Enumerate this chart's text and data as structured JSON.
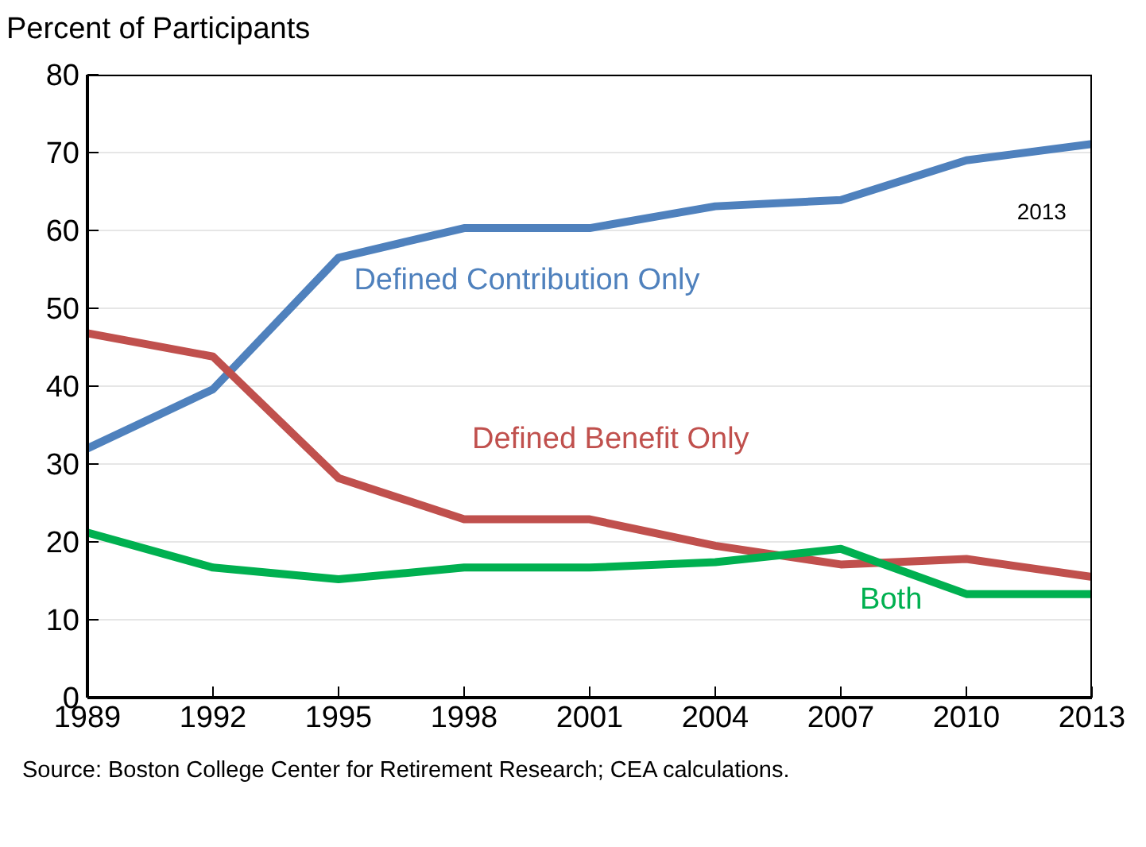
{
  "chart_data": {
    "type": "line",
    "ylabel": "Percent of Participants",
    "x": [
      1989,
      1992,
      1995,
      1998,
      2001,
      2004,
      2007,
      2010,
      2013
    ],
    "series": [
      {
        "name": "Defined Contribution Only",
        "color": "#4f81bd",
        "values": [
          32,
          39.6,
          56.5,
          60.3,
          60.3,
          63.1,
          63.9,
          69,
          71.1
        ]
      },
      {
        "name": "Defined Benefit Only",
        "color": "#c0504d",
        "values": [
          46.8,
          43.8,
          28.2,
          22.9,
          22.9,
          19.5,
          17.1,
          17.8,
          15.5
        ]
      },
      {
        "name": "Both",
        "color": "#00b050",
        "values": [
          21.2,
          16.7,
          15.2,
          16.7,
          16.7,
          17.4,
          19.1,
          13.3,
          13.3
        ]
      }
    ],
    "xlim": [
      1989,
      2013
    ],
    "xticks": [
      1989,
      1992,
      1995,
      1998,
      2001,
      2004,
      2007,
      2010,
      2013
    ],
    "ylim": [
      0,
      80
    ],
    "yticks": [
      0,
      10,
      20,
      30,
      40,
      50,
      60,
      70,
      80
    ],
    "grid": "y",
    "marker": "none",
    "line_style": "solid",
    "annotations": [
      "2013",
      "Source: Boston College Center for Retirement Research; CEA calculations."
    ]
  }
}
